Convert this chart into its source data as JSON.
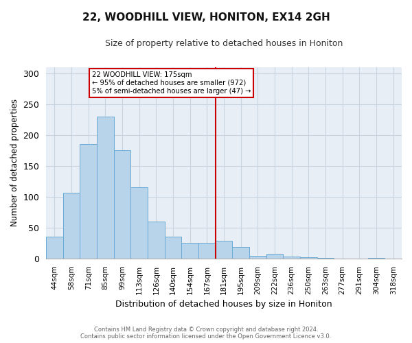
{
  "title": "22, WOODHILL VIEW, HONITON, EX14 2GH",
  "subtitle": "Size of property relative to detached houses in Honiton",
  "xlabel": "Distribution of detached houses by size in Honiton",
  "ylabel": "Number of detached properties",
  "bar_labels": [
    "44sqm",
    "58sqm",
    "71sqm",
    "85sqm",
    "99sqm",
    "113sqm",
    "126sqm",
    "140sqm",
    "154sqm",
    "167sqm",
    "181sqm",
    "195sqm",
    "209sqm",
    "222sqm",
    "236sqm",
    "250sqm",
    "263sqm",
    "277sqm",
    "291sqm",
    "304sqm",
    "318sqm"
  ],
  "bar_values": [
    35,
    107,
    185,
    230,
    176,
    116,
    60,
    35,
    25,
    25,
    29,
    19,
    4,
    8,
    3,
    2,
    1,
    0,
    0,
    1,
    0
  ],
  "bar_color": "#b8d4ea",
  "bar_edge_color": "#6aaad4",
  "vline_x_index": 10,
  "vline_color": "#cc0000",
  "annotation_title": "22 WOODHILL VIEW: 175sqm",
  "annotation_line1": "← 95% of detached houses are smaller (972)",
  "annotation_line2": "5% of semi-detached houses are larger (47) →",
  "annotation_box_color": "#ffffff",
  "annotation_box_edge": "#cc0000",
  "ylim": [
    0,
    310
  ],
  "yticks": [
    0,
    50,
    100,
    150,
    200,
    250,
    300
  ],
  "footer_line1": "Contains HM Land Registry data © Crown copyright and database right 2024.",
  "footer_line2": "Contains public sector information licensed under the Open Government Licence v3.0.",
  "background_color": "#ffffff",
  "grid_color": "#c8d4e0"
}
